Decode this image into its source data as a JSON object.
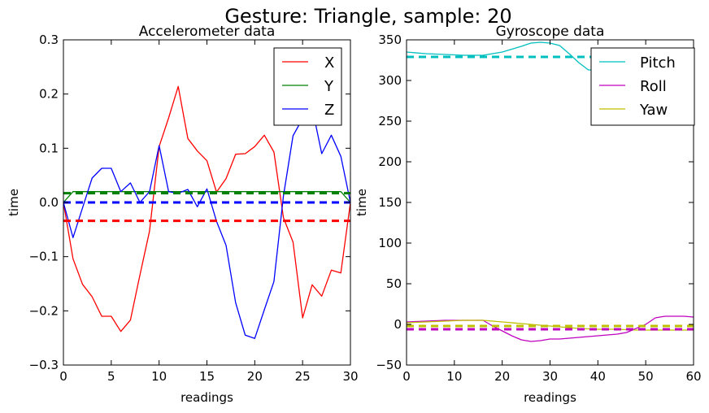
{
  "figure": {
    "title": "Gesture: Triangle, sample: 20"
  },
  "chart_data": [
    {
      "type": "line",
      "title": "Accelerometer data",
      "xlabel": "readings",
      "ylabel": "time",
      "xlim": [
        0,
        30
      ],
      "ylim": [
        -0.3,
        0.3
      ],
      "xticks": [
        0,
        5,
        10,
        15,
        20,
        25,
        30
      ],
      "yticks": [
        -0.3,
        -0.2,
        -0.1,
        0.0,
        0.1,
        0.2,
        0.3
      ],
      "ytick_labels": [
        "−0.3",
        "−0.2",
        "−0.1",
        "0.0",
        "0.1",
        "0.2",
        "0.3"
      ],
      "legend": "top-right",
      "grid": false,
      "series": [
        {
          "name": "X",
          "color": "#ff0000",
          "mean": -0.034,
          "x": [
            0,
            1,
            2,
            3,
            4,
            5,
            6,
            7,
            8,
            9,
            10,
            11,
            12,
            13,
            14,
            15,
            16,
            17,
            18,
            19,
            20,
            21,
            22,
            23,
            24,
            25,
            26,
            27,
            28,
            29,
            30
          ],
          "y": [
            0,
            -0.104,
            -0.151,
            -0.174,
            -0.21,
            -0.21,
            -0.238,
            -0.217,
            -0.134,
            -0.053,
            0.103,
            0.156,
            0.214,
            0.118,
            0.095,
            0.077,
            0.019,
            0.044,
            0.089,
            0.09,
            0.103,
            0.124,
            0.093,
            -0.028,
            -0.073,
            -0.213,
            -0.152,
            -0.173,
            -0.125,
            -0.13,
            0
          ]
        },
        {
          "name": "Y",
          "color": "#008000",
          "mean": 0.017,
          "x": [
            0,
            1,
            2,
            3,
            4,
            5,
            6,
            7,
            8,
            9,
            10,
            11,
            12,
            13,
            14,
            15,
            16,
            17,
            18,
            19,
            20,
            21,
            22,
            23,
            24,
            25,
            26,
            27,
            28,
            29,
            30
          ],
          "y": [
            0,
            0.02,
            0.02,
            0.02,
            0.02,
            0.02,
            0.02,
            0.02,
            0.02,
            0.02,
            0.02,
            0.02,
            0.02,
            0.02,
            0.02,
            0.02,
            0.02,
            0.02,
            0.02,
            0.02,
            0.02,
            0.02,
            0.02,
            0.02,
            0.02,
            0.02,
            0.02,
            0.02,
            0.02,
            0.02,
            0
          ]
        },
        {
          "name": "Z",
          "color": "#0000ff",
          "mean": 0.0,
          "x": [
            0,
            1,
            2,
            3,
            4,
            5,
            6,
            7,
            8,
            9,
            10,
            11,
            12,
            13,
            14,
            15,
            16,
            17,
            18,
            19,
            20,
            21,
            22,
            23,
            24,
            25,
            26,
            27,
            28,
            29,
            30
          ],
          "y": [
            0,
            -0.065,
            -0.01,
            0.045,
            0.063,
            0.063,
            0.02,
            0.036,
            0.0,
            0.02,
            0.105,
            0.02,
            0.017,
            0.024,
            -0.008,
            0.025,
            -0.035,
            -0.079,
            -0.185,
            -0.245,
            -0.251,
            -0.198,
            -0.146,
            0.012,
            0.123,
            0.155,
            0.175,
            0.09,
            0.124,
            0.085,
            0
          ]
        }
      ]
    },
    {
      "type": "line",
      "title": "Gyroscope data",
      "xlabel": "readings",
      "ylabel": "time",
      "xlim": [
        0,
        60
      ],
      "ylim": [
        -50,
        350
      ],
      "xticks": [
        0,
        10,
        20,
        30,
        40,
        50,
        60
      ],
      "yticks": [
        -50,
        0,
        50,
        100,
        150,
        200,
        250,
        300,
        350
      ],
      "ytick_labels": [
        "−50",
        "0",
        "50",
        "100",
        "150",
        "200",
        "250",
        "300",
        "350"
      ],
      "legend": "top-right",
      "grid": false,
      "series": [
        {
          "name": "Pitch",
          "color": "#00bfbf",
          "mean": 329,
          "x": [
            0,
            4,
            8,
            12,
            16,
            20,
            24,
            26,
            28,
            30,
            32,
            34,
            36,
            38,
            40,
            42,
            44,
            46,
            48,
            50,
            52,
            54,
            56,
            58,
            60
          ],
          "y": [
            335,
            333,
            332,
            331,
            331,
            335,
            342,
            346,
            347,
            346,
            343,
            333,
            322,
            313,
            313,
            320,
            327,
            331,
            333,
            333,
            332,
            331,
            330,
            330,
            329
          ]
        },
        {
          "name": "Roll",
          "color": "#bf00bf",
          "mean": -6,
          "x": [
            0,
            4,
            8,
            12,
            16,
            18,
            20,
            22,
            24,
            26,
            28,
            30,
            32,
            34,
            36,
            38,
            40,
            42,
            44,
            46,
            48,
            50,
            52,
            54,
            56,
            58,
            60
          ],
          "y": [
            3,
            4,
            5,
            5,
            5,
            -2,
            -8,
            -14,
            -19,
            -21,
            -20,
            -18,
            -18,
            -17,
            -16,
            -15,
            -14,
            -13,
            -12,
            -10,
            -5,
            0,
            8,
            10,
            10,
            10,
            9
          ]
        },
        {
          "name": "Yaw",
          "color": "#bfbf00",
          "mean": -2,
          "x": [
            0,
            4,
            8,
            12,
            16,
            20,
            24,
            28,
            32,
            36,
            40,
            44,
            48,
            52,
            56,
            60
          ],
          "y": [
            2,
            3,
            4,
            5,
            5,
            3,
            1,
            -1,
            -3,
            -5,
            -6,
            -6,
            -7,
            -7,
            -7,
            -7
          ]
        }
      ]
    }
  ]
}
